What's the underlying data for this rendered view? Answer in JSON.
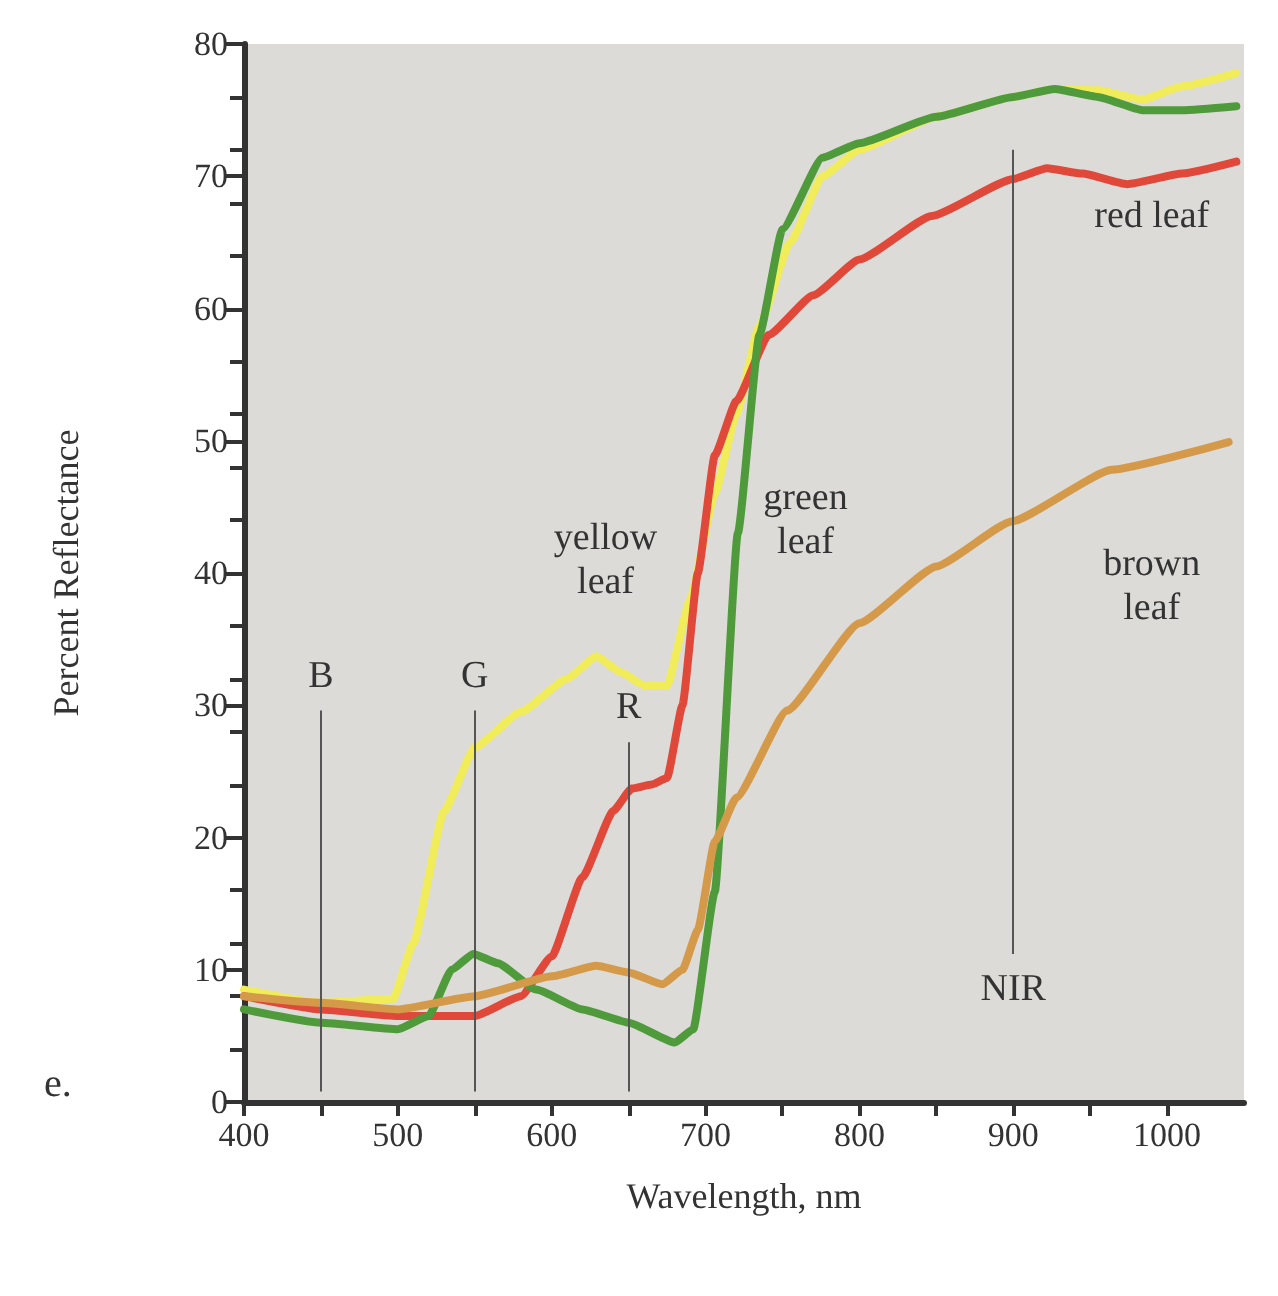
{
  "chart_data": {
    "type": "line",
    "xlabel": "Wavelength, nm",
    "ylabel": "Percent Reflectance",
    "xlim": [
      400,
      1050
    ],
    "xticks": [
      400,
      500,
      600,
      700,
      800,
      900,
      1000
    ],
    "ylim": [
      0,
      80
    ],
    "yticks": [
      0,
      10,
      20,
      30,
      40,
      50,
      60,
      70,
      80
    ],
    "grid": false,
    "legend": false,
    "marker": "none",
    "line_style": "solid",
    "annotations": [
      "e."
    ],
    "ref_lines": [
      {
        "axis": "x",
        "value": 450,
        "label": "B"
      },
      {
        "axis": "x",
        "value": 550,
        "label": "G"
      },
      {
        "axis": "x",
        "value": 650,
        "label": "R"
      },
      {
        "axis": "x",
        "value": 900,
        "label": "NIR"
      }
    ],
    "series": [
      {
        "name": "yellow leaf",
        "color": "#f0ec5a",
        "x": [
          400,
          450,
          497,
          510,
          530,
          550,
          580,
          610,
          629,
          645,
          660,
          675,
          690,
          706,
          720,
          735,
          755,
          776,
          800,
          850,
          900,
          927,
          955,
          984,
          1010,
          1045
        ],
        "values": [
          8.5,
          7.5,
          7.8,
          12,
          22,
          26.8,
          29.5,
          32,
          33.7,
          32.5,
          31.5,
          31.5,
          38,
          46,
          52,
          58.7,
          65,
          70,
          72,
          74.5,
          76,
          76.6,
          76.5,
          75.8,
          76.8,
          77.8
        ]
      },
      {
        "name": "red leaf",
        "color": "#e0483a",
        "x": [
          400,
          450,
          500,
          550,
          580,
          600,
          620,
          640,
          652,
          665,
          675,
          685,
          695,
          706,
          720,
          741,
          770,
          800,
          847,
          900,
          922,
          945,
          974,
          1010,
          1045
        ],
        "values": [
          8,
          7,
          6.5,
          6.5,
          8,
          11,
          17,
          22,
          23.7,
          24,
          24.5,
          30,
          40,
          48.9,
          53,
          58,
          61,
          63.7,
          67,
          69.8,
          70.6,
          70.2,
          69.4,
          70.2,
          71.1
        ]
      },
      {
        "name": "green leaf",
        "color": "#4f9a3a",
        "x": [
          400,
          450,
          500,
          520,
          535,
          549,
          565,
          590,
          620,
          650,
          680,
          692,
          706,
          721,
          735,
          750,
          776,
          800,
          850,
          900,
          927,
          955,
          984,
          1010,
          1045
        ],
        "values": [
          7,
          6,
          5.5,
          6.5,
          10,
          11.2,
          10.5,
          8.5,
          7,
          6,
          4.5,
          5.5,
          15.9,
          43,
          58,
          66,
          71.4,
          72.5,
          74.5,
          76,
          76.6,
          76,
          75,
          75,
          75.3
        ]
      },
      {
        "name": "brown leaf",
        "color": "#d49a4a",
        "x": [
          400,
          450,
          500,
          550,
          600,
          629,
          650,
          672,
          685,
          695,
          706,
          720,
          753,
          800,
          850,
          899,
          964,
          1040
        ],
        "values": [
          8,
          7.5,
          7,
          8,
          9.5,
          10.3,
          9.8,
          8.9,
          10,
          13,
          19.7,
          23,
          29.6,
          36.2,
          40.5,
          43.9,
          47.8,
          49.9
        ]
      }
    ]
  }
}
